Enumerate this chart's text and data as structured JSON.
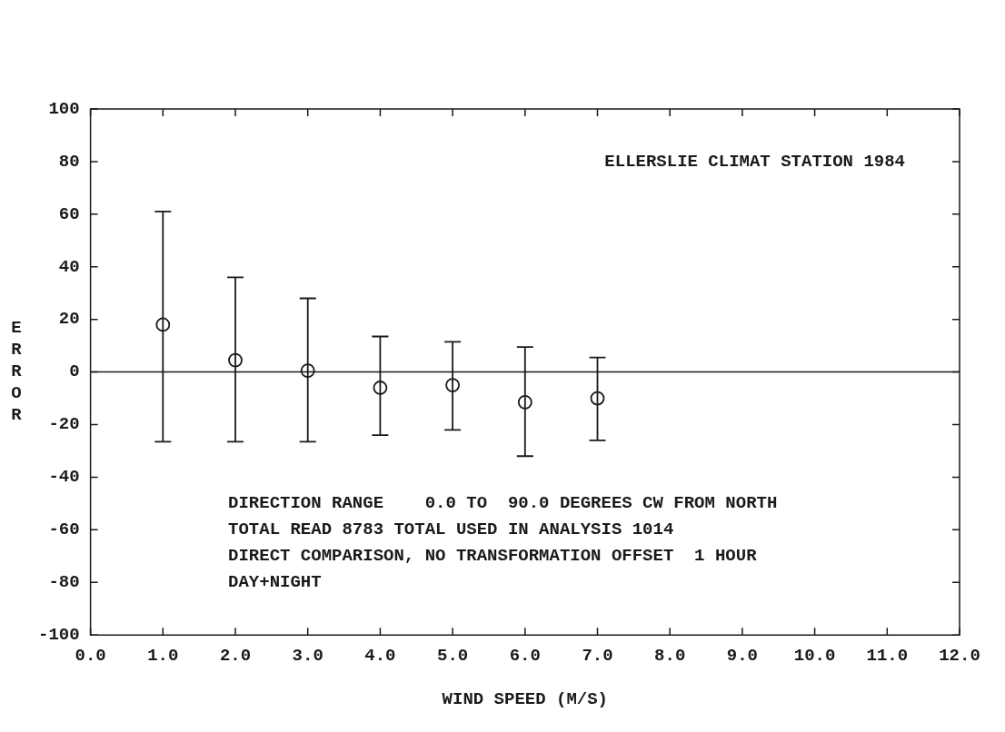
{
  "chart_data": {
    "type": "scatter",
    "xlabel": "WIND SPEED (M/S)",
    "ylabel": "ERROR",
    "x": [
      1,
      2,
      3,
      4,
      5,
      6,
      7
    ],
    "values": [
      18,
      4.5,
      0.5,
      -6,
      -5,
      -11.5,
      -10
    ],
    "errors": [
      [
        -26.5,
        61
      ],
      [
        -26.5,
        36
      ],
      [
        -26.5,
        28
      ],
      [
        -24,
        13.5
      ],
      [
        -22,
        11.5
      ],
      [
        -32,
        9.5
      ],
      [
        -26,
        5.5
      ]
    ],
    "color": "#1a1a1a",
    "marker": "circle",
    "grid": false,
    "xlim": [
      0,
      12
    ],
    "xticks": [
      {
        "value": 0,
        "label": "0.0"
      },
      {
        "value": 1,
        "label": "1.0"
      },
      {
        "value": 2,
        "label": "2.0"
      },
      {
        "value": 3,
        "label": "3.0"
      },
      {
        "value": 4,
        "label": "4.0"
      },
      {
        "value": 5,
        "label": "5.0"
      },
      {
        "value": 6,
        "label": "6.0"
      },
      {
        "value": 7,
        "label": "7.0"
      },
      {
        "value": 8,
        "label": "8.0"
      },
      {
        "value": 9,
        "label": "9.0"
      },
      {
        "value": 10,
        "label": "10.0"
      },
      {
        "value": 11,
        "label": "11.0"
      },
      {
        "value": 12,
        "label": "12.0"
      }
    ],
    "ylim": [
      -100,
      100
    ],
    "yticks": [
      -100,
      -80,
      -60,
      -40,
      -20,
      0,
      20,
      40,
      60,
      80,
      100
    ],
    "ref_lines": [
      {
        "axis": "y",
        "value": 0
      }
    ],
    "annotations": [
      "ELLERSLIE CLIMAT STATION 1984",
      "DIRECTION RANGE    0.0 TO  90.0 DEGREES CW FROM NORTH",
      "TOTAL READ 8783 TOTAL USED IN ANALYSIS 1014",
      "DIRECT COMPARISON, NO TRANSFORMATION OFFSET  1 HOUR",
      "DAY+NIGHT"
    ]
  }
}
